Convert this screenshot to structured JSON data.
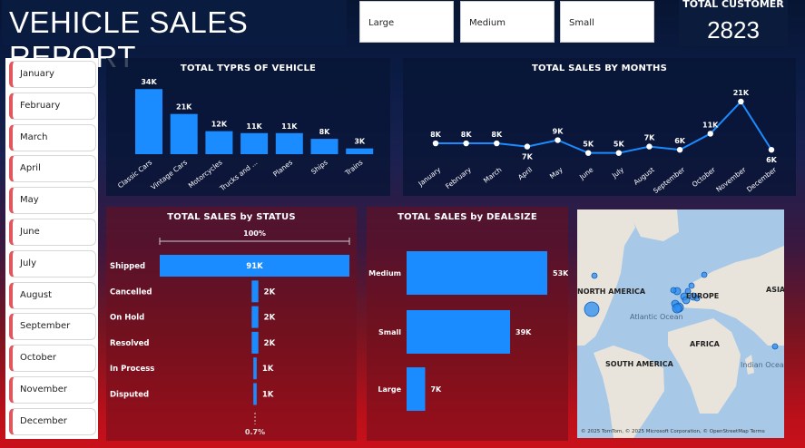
{
  "title": "VEHICLE SALES REPORT",
  "slicers": [
    "Large",
    "Medium",
    "Small"
  ],
  "kpi": {
    "label": "TOTAL CUSTOMER",
    "value": "2823"
  },
  "months": [
    "January",
    "February",
    "March",
    "April",
    "May",
    "June",
    "July",
    "August",
    "September",
    "October",
    "November",
    "December"
  ],
  "colors": {
    "accent": "#1a8cff",
    "panel": "#0a1c45"
  },
  "chart_data": [
    {
      "type": "bar",
      "title": "TOTAL TYPRS OF VEHICLE",
      "categories": [
        "Classic Cars",
        "Vintage Cars",
        "Motorcycles",
        "Trucks and ...",
        "Planes",
        "Ships",
        "Trains"
      ],
      "values": [
        34,
        21,
        12,
        11,
        11,
        8,
        3
      ],
      "labels": [
        "34K",
        "21K",
        "12K",
        "11K",
        "11K",
        "8K",
        "3K"
      ],
      "ylim": [
        0,
        36
      ]
    },
    {
      "type": "line",
      "title": "TOTAL SALES BY MONTHS",
      "categories": [
        "January",
        "February",
        "March",
        "April",
        "May",
        "June",
        "July",
        "August",
        "September",
        "October",
        "November",
        "December"
      ],
      "values": [
        8,
        8,
        8,
        7,
        9,
        5,
        5,
        7,
        6,
        11,
        21,
        6
      ],
      "labels": [
        "8K",
        "8K",
        "8K",
        "7K",
        "9K",
        "5K",
        "5K",
        "7K",
        "6K",
        "11K",
        "21K",
        "6K"
      ],
      "ylim": [
        0,
        23
      ]
    },
    {
      "type": "bar",
      "title": "TOTAL SALES by STATUS",
      "categories": [
        "Shipped",
        "Cancelled",
        "On Hold",
        "Resolved",
        "In Process",
        "Disputed"
      ],
      "values": [
        91,
        2,
        2,
        2,
        1,
        1
      ],
      "labels": [
        "91K",
        "2K",
        "2K",
        "2K",
        "1K",
        "1K"
      ],
      "top_label": "100%",
      "bottom_label": "0.7%"
    },
    {
      "type": "bar",
      "title": "TOTAL SALES by DEALSIZE",
      "categories": [
        "Medium",
        "Small",
        "Large"
      ],
      "values": [
        53,
        39,
        7
      ],
      "labels": [
        "53K",
        "39K",
        "7K"
      ]
    }
  ],
  "map": {
    "regions": [
      "NORTH AMERICA",
      "EUROPE",
      "ASIA",
      "AFRICA",
      "SOUTH AMERICA"
    ],
    "oceans": [
      "Atlantic Ocean",
      "Indian Ocean"
    ],
    "attribution": "© 2025 TomTom, © 2025 Microsoft Corporation, © OpenStreetMap Terms"
  }
}
